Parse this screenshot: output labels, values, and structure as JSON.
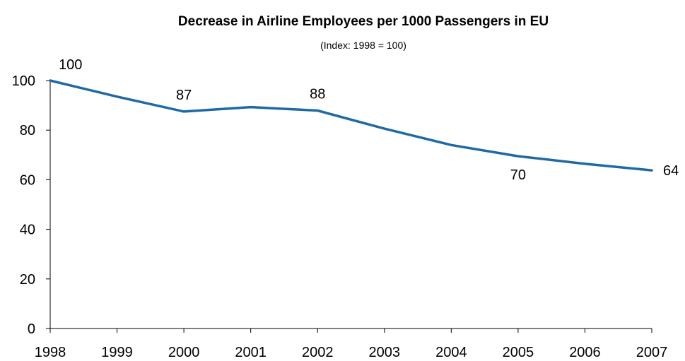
{
  "chart_data": {
    "type": "line",
    "title": "Decrease in Airline Employees per 1000 Passengers in EU",
    "subtitle": "(Index: 1998 = 100)",
    "xlabel": "",
    "ylabel": "",
    "x": [
      "1998",
      "1999",
      "2000",
      "2001",
      "2002",
      "2003",
      "2004",
      "2005",
      "2006",
      "2007"
    ],
    "series": [
      {
        "values": [
          100,
          93.5,
          87.5,
          89.3,
          87.9,
          80.6,
          74,
          69.5,
          66.4,
          63.8
        ]
      }
    ],
    "data_labels": [
      {
        "index": 0,
        "text": "100"
      },
      {
        "index": 2,
        "text": "87"
      },
      {
        "index": 4,
        "text": "88"
      },
      {
        "index": 7,
        "text": "70"
      },
      {
        "index": 9,
        "text": "64"
      }
    ],
    "y_ticks": [
      "0",
      "20",
      "40",
      "60",
      "80",
      "100"
    ],
    "ylim": [
      0,
      100
    ],
    "grid": false,
    "legend": "none",
    "line_color": "#1f6aa5"
  }
}
